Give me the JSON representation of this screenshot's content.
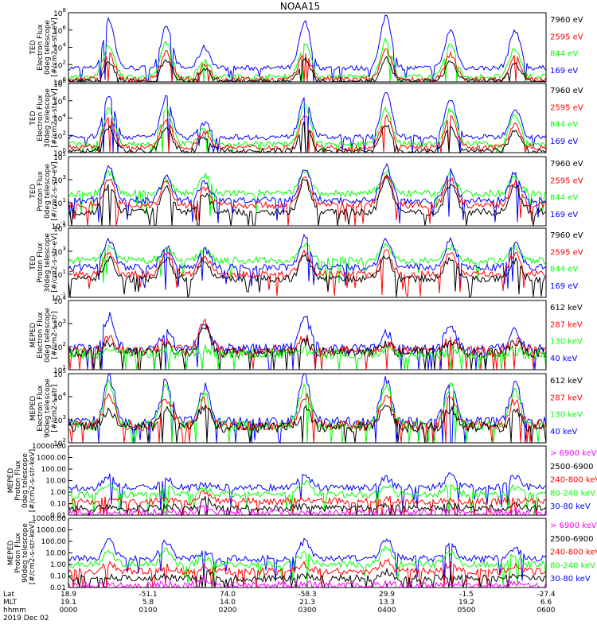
{
  "title": "NOAA15",
  "colors": {
    "black": "#000000",
    "blue": "#0000ff",
    "green": "#00ff00",
    "red": "#ff0000",
    "magenta": "#ff00ff"
  },
  "footer": {
    "row_labels": [
      "Lat",
      "MLT",
      "hhmm",
      "2019 Dec 02"
    ],
    "ticks": [
      {
        "lat": "18.9",
        "mlt": "19.1",
        "hhmm": "0000"
      },
      {
        "lat": "-51.1",
        "mlt": "5.8",
        "hhmm": "0100"
      },
      {
        "lat": "74.0",
        "mlt": "14.0",
        "hhmm": "0200"
      },
      {
        "lat": "-58.3",
        "mlt": "21.3",
        "hhmm": "0300"
      },
      {
        "lat": "29.9",
        "mlt": "13.3",
        "hhmm": "0400"
      },
      {
        "lat": "-1.5",
        "mlt": "19.2",
        "hhmm": "0500"
      },
      {
        "lat": "-27.4",
        "mlt": "6.6",
        "hhmm": "0600"
      }
    ]
  },
  "chart_data": [
    {
      "type": "line",
      "panel": 1,
      "ylabel": [
        "TED",
        "Electron Flux",
        "0deg telescope",
        "[#/cm2-s-str-eV]"
      ],
      "yscale": "log",
      "ylim_exp": [
        0,
        8
      ],
      "ytick_labels": [
        [
          "10",
          "0"
        ],
        [
          "10",
          "2"
        ],
        [
          "10",
          "4"
        ],
        [
          "10",
          "6"
        ],
        [
          "10",
          "8"
        ]
      ],
      "legend": [
        {
          "text": "7960 eV",
          "color": "black"
        },
        {
          "text": "2595 eV",
          "color": "red"
        },
        {
          "text": "844 eV",
          "color": "green"
        },
        {
          "text": "169 eV",
          "color": "blue"
        }
      ],
      "series": [
        {
          "color": "blue",
          "base": 1.6,
          "peaks": [
            7.2,
            6.6,
            4.0,
            6.9,
            7.7,
            6.0,
            6.0
          ]
        },
        {
          "color": "green",
          "base": 0.6,
          "peaks": [
            4.2,
            4.6,
            2.6,
            4.6,
            4.8,
            4.3,
            3.8
          ]
        },
        {
          "color": "red",
          "base": 0.3,
          "peaks": [
            3.2,
            3.4,
            2.0,
            3.5,
            3.6,
            3.2,
            3.0
          ]
        },
        {
          "color": "black",
          "base": 0.05,
          "peaks": [
            2.2,
            2.6,
            1.5,
            2.7,
            2.7,
            2.4,
            2.2
          ]
        }
      ]
    },
    {
      "type": "line",
      "panel": 2,
      "ylabel": [
        "TED",
        "Electron Flux",
        "30deg telescope",
        "[#/cm2-s-str-eV]"
      ],
      "yscale": "log",
      "ylim_exp": [
        0,
        8
      ],
      "ytick_labels": [
        [
          "10",
          "0"
        ],
        [
          "10",
          "2"
        ],
        [
          "10",
          "4"
        ],
        [
          "10",
          "6"
        ],
        [
          "10",
          "8"
        ]
      ],
      "legend": [
        {
          "text": "7960 eV",
          "color": "black"
        },
        {
          "text": "2595 eV",
          "color": "red"
        },
        {
          "text": "844 eV",
          "color": "green"
        },
        {
          "text": "169 eV",
          "color": "blue"
        }
      ],
      "series": [
        {
          "color": "blue",
          "base": 1.8,
          "peaks": [
            6.8,
            6.4,
            3.4,
            6.6,
            6.8,
            6.1,
            5.2
          ]
        },
        {
          "color": "green",
          "base": 1.0,
          "peaks": [
            5.0,
            5.2,
            2.8,
            5.4,
            5.1,
            5.0,
            4.4
          ]
        },
        {
          "color": "red",
          "base": 0.6,
          "peaks": [
            4.2,
            4.0,
            2.4,
            4.4,
            4.2,
            4.2,
            3.4
          ]
        },
        {
          "color": "black",
          "base": 0.2,
          "peaks": [
            3.0,
            3.0,
            1.8,
            3.4,
            3.2,
            3.0,
            2.6
          ]
        }
      ]
    },
    {
      "type": "line",
      "panel": 3,
      "ylabel": [
        "TED",
        "Proton Flux",
        "0deg telescope",
        "[#/cm2-s-str-eV]"
      ],
      "yscale": "log",
      "ylim_exp": [
        -1,
        5
      ],
      "ytick_labels": [
        [
          "10",
          "-1"
        ],
        [
          "10",
          "1"
        ],
        [
          "10",
          "3"
        ],
        [
          "10",
          "5"
        ]
      ],
      "legend": [
        {
          "text": "7960 eV",
          "color": "black"
        },
        {
          "text": "2595 eV",
          "color": "red"
        },
        {
          "text": "844 eV",
          "color": "green"
        },
        {
          "text": "169 eV",
          "color": "blue"
        }
      ],
      "series": [
        {
          "color": "green",
          "base": 1.8,
          "peaks": [
            3.6,
            3.0,
            3.4,
            3.8,
            3.8,
            3.6,
            3.4
          ]
        },
        {
          "color": "blue",
          "base": 1.2,
          "peaks": [
            4.0,
            3.2,
            2.8,
            4.0,
            4.2,
            3.8,
            3.6
          ]
        },
        {
          "color": "red",
          "base": 0.8,
          "peaks": [
            3.0,
            2.8,
            2.2,
            3.2,
            3.4,
            3.0,
            2.8
          ]
        },
        {
          "color": "black",
          "base": 0.2,
          "peaks": [
            2.6,
            2.4,
            1.8,
            3.0,
            3.2,
            2.6,
            2.4
          ]
        }
      ]
    },
    {
      "type": "line",
      "panel": 4,
      "ylabel": [
        "TED",
        "Proton Flux",
        "30deg telescope",
        "[#/cm2-s-str-eV]"
      ],
      "yscale": "log",
      "ylim_exp": [
        -1,
        5
      ],
      "ytick_labels": [
        [
          "10",
          "-1"
        ],
        [
          "10",
          "1"
        ],
        [
          "10",
          "3"
        ],
        [
          "10",
          "5"
        ]
      ],
      "legend": [
        {
          "text": "7960 eV",
          "color": "black"
        },
        {
          "text": "2595 eV",
          "color": "red"
        },
        {
          "text": "844 eV",
          "color": "green"
        },
        {
          "text": "169 eV",
          "color": "blue"
        }
      ],
      "series": [
        {
          "color": "green",
          "base": 2.2,
          "peaks": [
            3.4,
            3.2,
            3.2,
            3.6,
            3.6,
            3.4,
            3.4
          ]
        },
        {
          "color": "blue",
          "base": 1.6,
          "peaks": [
            4.0,
            3.4,
            3.2,
            4.2,
            4.0,
            4.0,
            3.8
          ]
        },
        {
          "color": "red",
          "base": 1.0,
          "peaks": [
            2.8,
            2.8,
            2.6,
            3.0,
            3.0,
            3.0,
            2.8
          ]
        },
        {
          "color": "black",
          "base": 0.6,
          "peaks": [
            2.4,
            2.4,
            2.2,
            2.6,
            2.6,
            2.4,
            2.2
          ]
        }
      ]
    },
    {
      "type": "line",
      "panel": 5,
      "ylabel": [
        "MEPED",
        "Electron Flux",
        "0deg telescope",
        "[#/cm2-s-str]"
      ],
      "yscale": "log",
      "ylim_exp": [
        1,
        5
      ],
      "ytick_labels": [
        [
          "10",
          "1"
        ],
        [
          "10",
          "2"
        ],
        [
          "10",
          "3"
        ],
        [
          "10",
          "4"
        ]
      ],
      "legend": [
        {
          "text": "612 keV",
          "color": "black"
        },
        {
          "text": "287 keV",
          "color": "red"
        },
        {
          "text": "130 keV",
          "color": "green"
        },
        {
          "text": "40 keV",
          "color": "blue"
        }
      ],
      "series": [
        {
          "color": "blue",
          "base": 2.2,
          "peaks": [
            4.1,
            3.2,
            3.6,
            4.0,
            3.2,
            3.6,
            3.4
          ]
        },
        {
          "color": "red",
          "base": 2.1,
          "peaks": [
            2.8,
            2.6,
            3.7,
            2.8,
            2.6,
            2.8,
            2.6
          ]
        },
        {
          "color": "black",
          "base": 2.0,
          "peaks": [
            2.6,
            2.5,
            3.6,
            2.6,
            2.5,
            2.6,
            2.5
          ]
        },
        {
          "color": "green",
          "base": 1.9,
          "peaks": [
            2.1,
            2.1,
            2.2,
            2.1,
            2.1,
            2.1,
            2.1
          ]
        }
      ]
    },
    {
      "type": "line",
      "panel": 6,
      "ylabel": [
        "MEPED",
        "Electron Flux",
        "90deg telescope",
        "[#/cm2-s-str]"
      ],
      "yscale": "log",
      "ylim_exp": [
        1,
        5
      ],
      "ytick_labels": [
        [
          "10",
          "2"
        ],
        [
          "10",
          "3"
        ],
        [
          "10",
          "4"
        ],
        [
          "10",
          "5"
        ]
      ],
      "legend": [
        {
          "text": "612 keV",
          "color": "black"
        },
        {
          "text": "287 keV",
          "color": "red"
        },
        {
          "text": "130 keV",
          "color": "green"
        },
        {
          "text": "40 keV",
          "color": "blue"
        }
      ],
      "series": [
        {
          "color": "blue",
          "base": 2.2,
          "peaks": [
            4.8,
            4.6,
            4.2,
            4.8,
            4.7,
            4.7,
            4.4
          ]
        },
        {
          "color": "green",
          "base": 2.0,
          "peaks": [
            4.4,
            4.2,
            3.8,
            4.3,
            4.4,
            4.3,
            4.0
          ]
        },
        {
          "color": "red",
          "base": 2.0,
          "peaks": [
            3.8,
            3.6,
            3.4,
            3.8,
            3.8,
            3.8,
            3.4
          ]
        },
        {
          "color": "black",
          "base": 1.9,
          "peaks": [
            3.0,
            3.0,
            3.2,
            3.0,
            3.2,
            3.0,
            2.8
          ]
        }
      ]
    },
    {
      "type": "line",
      "panel": 7,
      "ylabel": [
        "MEPED",
        "Proton Flux",
        "0deg telescope",
        "[#/cm2-s-str-keV]"
      ],
      "yscale": "log",
      "ylim_exp": [
        -2,
        4
      ],
      "ytick_labels": [
        "0.01",
        "0.10",
        "1.00",
        "10.00",
        "100.00",
        "1000.00",
        "10000.00"
      ],
      "legend": [
        {
          "text": "> 6900 keV",
          "color": "magenta"
        },
        {
          "text": "2500-6900",
          "color": "black"
        },
        {
          "text": "240-800 keV",
          "color": "red"
        },
        {
          "text": "80-240 keV",
          "color": "green"
        },
        {
          "text": "30-80 keV",
          "color": "blue"
        }
      ],
      "series": [
        {
          "color": "blue",
          "base": 0.4,
          "peaks": [
            1.4,
            1.1,
            0.6,
            1.6,
            1.2,
            1.6,
            1.4
          ]
        },
        {
          "color": "green",
          "base": -0.2,
          "peaks": [
            0.6,
            0.4,
            0.3,
            0.8,
            0.5,
            0.6,
            0.4
          ]
        },
        {
          "color": "red",
          "base": -0.8,
          "peaks": [
            -0.6,
            -0.6,
            0.0,
            -0.6,
            -0.6,
            -0.6,
            -0.6
          ]
        },
        {
          "color": "black",
          "base": -1.4,
          "peaks": [
            -1.2,
            -1.2,
            -0.6,
            -1.2,
            -1.2,
            -1.2,
            -1.2
          ]
        },
        {
          "color": "magenta",
          "base": -1.8,
          "peaks": [
            -1.7,
            -1.7,
            -1.2,
            -1.7,
            -1.7,
            -1.7,
            -1.7
          ]
        }
      ]
    },
    {
      "type": "line",
      "panel": 8,
      "ylabel": [
        "MEPED",
        "Proton Flux",
        "90deg telescope",
        "[#/cm2-s-str-keV]"
      ],
      "yscale": "log",
      "ylim_exp": [
        -2,
        4
      ],
      "ytick_labels": [
        "0.01",
        "0.10",
        "1.00",
        "10.00",
        "100.00",
        "1000.00",
        "10000.00"
      ],
      "legend": [
        {
          "text": "> 6900 keV",
          "color": "magenta"
        },
        {
          "text": "2500-6900",
          "color": "black"
        },
        {
          "text": "240-800 keV",
          "color": "red"
        },
        {
          "text": "80-240 keV",
          "color": "green"
        },
        {
          "text": "30-80 keV",
          "color": "blue"
        }
      ],
      "series": [
        {
          "color": "blue",
          "base": 0.5,
          "peaks": [
            2.0,
            2.0,
            1.0,
            2.0,
            2.2,
            1.8,
            1.4
          ]
        },
        {
          "color": "green",
          "base": 0.0,
          "peaks": [
            1.2,
            1.2,
            0.6,
            1.0,
            1.4,
            1.0,
            0.8
          ]
        },
        {
          "color": "red",
          "base": -0.6,
          "peaks": [
            0.0,
            -0.2,
            -0.2,
            0.0,
            0.3,
            0.0,
            -0.2
          ]
        },
        {
          "color": "black",
          "base": -1.2,
          "peaks": [
            -1.0,
            -1.0,
            -0.6,
            -1.0,
            -0.6,
            -1.0,
            -1.0
          ]
        },
        {
          "color": "magenta",
          "base": -1.8,
          "peaks": [
            -1.7,
            -1.7,
            -1.3,
            -1.7,
            -1.7,
            -1.7,
            -1.7
          ]
        }
      ]
    }
  ]
}
